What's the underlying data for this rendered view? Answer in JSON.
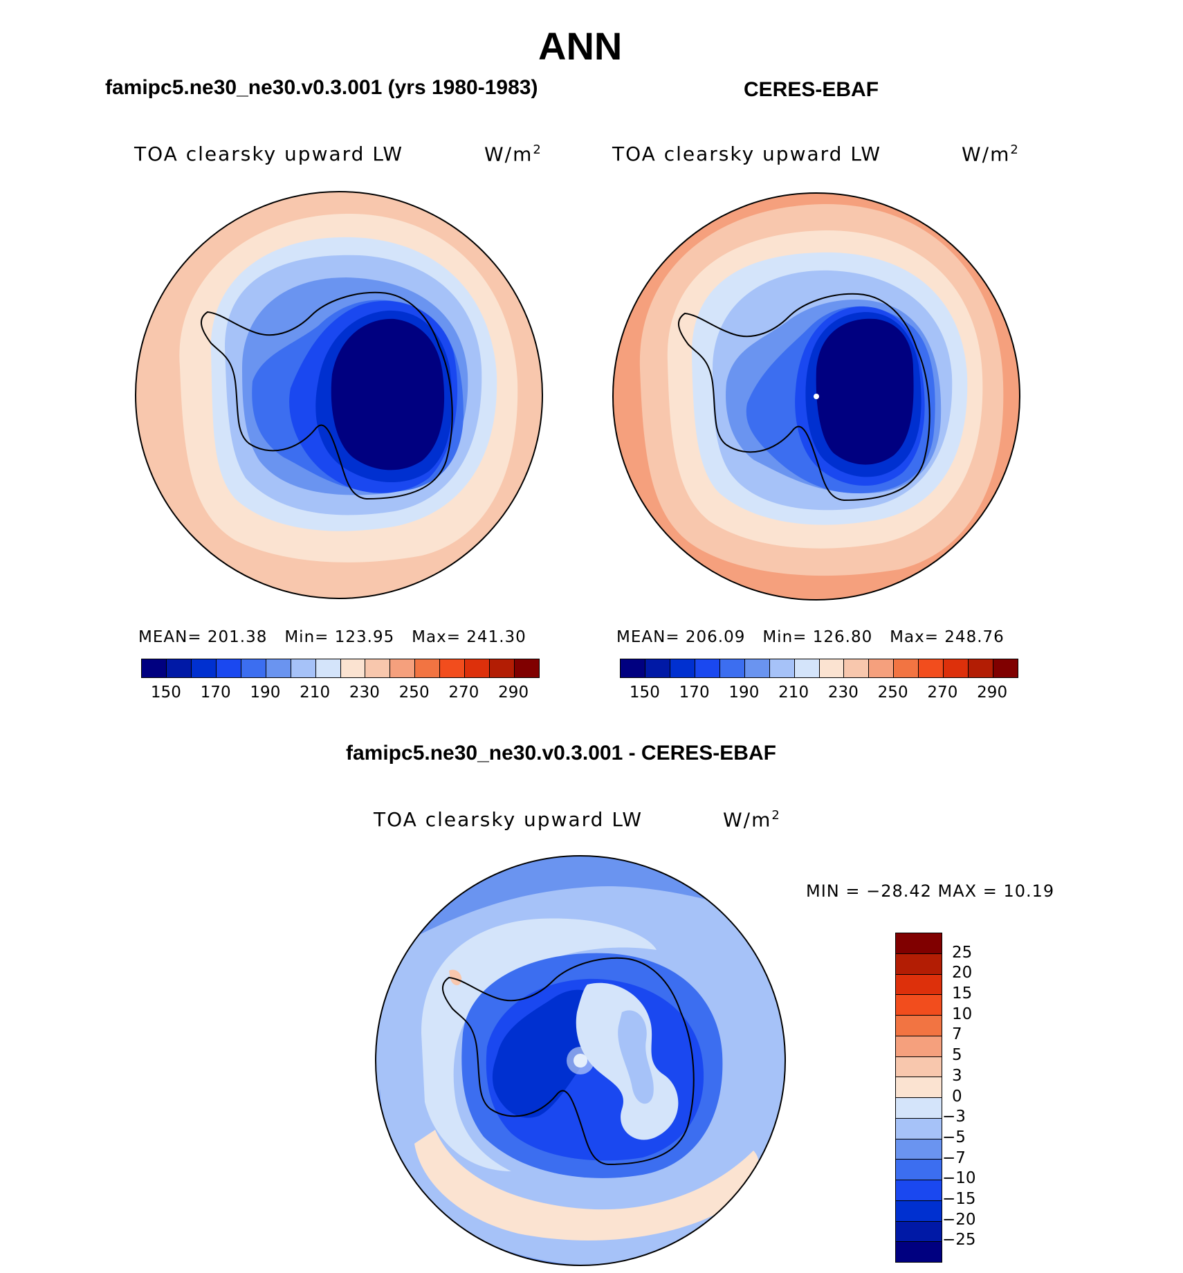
{
  "title": "ANN",
  "panels": {
    "left": {
      "header": "famipc5.ne30_ne30.v0.3.001 (yrs 1980-1983)",
      "variable": "TOA clearsky upward LW",
      "units_base": "W/m",
      "units_exp": "2",
      "mean_label": "MEAN=",
      "mean": "201.38",
      "min_label": "Min=",
      "min": "123.95",
      "max_label": "Max=",
      "max": "241.30"
    },
    "right": {
      "header": "CERES-EBAF",
      "variable": "TOA clearsky upward LW",
      "units_base": "W/m",
      "units_exp": "2",
      "mean_label": "MEAN=",
      "mean": "206.09",
      "min_label": "Min=",
      "min": "126.80",
      "max_label": "Max=",
      "max": "248.76"
    },
    "diff": {
      "header": "famipc5.ne30_ne30.v0.3.001 - CERES-EBAF",
      "variable": "TOA clearsky upward LW",
      "units_base": "W/m",
      "units_exp": "2",
      "minmax_text": "MIN = −28.42 MAX =  10.19"
    }
  },
  "chart_data": [
    {
      "type": "heatmap",
      "projection": "south-polar stereographic",
      "title": "famipc5.ne30_ne30.v0.3.001 (yrs 1980-1983)",
      "variable": "TOA clearsky upward LW",
      "units": "W/m2",
      "stats": {
        "mean": 201.38,
        "min": 123.95,
        "max": 241.3
      },
      "colorbar_levels": [
        150,
        160,
        170,
        180,
        190,
        200,
        210,
        220,
        230,
        240,
        250,
        260,
        270,
        280,
        290
      ],
      "colorbar_tick_labels": [
        "150",
        "170",
        "190",
        "210",
        "230",
        "250",
        "270",
        "290"
      ],
      "colors": [
        "#000080",
        "#0019a6",
        "#0030d0",
        "#1a48f0",
        "#3c6ef0",
        "#6a94f0",
        "#a6c2f8",
        "#d4e4fa",
        "#fbe3d1",
        "#f8c7ad",
        "#f5a07d",
        "#f27442",
        "#f24d1d",
        "#dd300b",
        "#b31d04",
        "#800000"
      ]
    },
    {
      "type": "heatmap",
      "projection": "south-polar stereographic",
      "title": "CERES-EBAF",
      "variable": "TOA clearsky upward LW",
      "units": "W/m2",
      "stats": {
        "mean": 206.09,
        "min": 126.8,
        "max": 248.76
      },
      "colorbar_levels": [
        150,
        160,
        170,
        180,
        190,
        200,
        210,
        220,
        230,
        240,
        250,
        260,
        270,
        280,
        290
      ],
      "colorbar_tick_labels": [
        "150",
        "170",
        "190",
        "210",
        "230",
        "250",
        "270",
        "290"
      ],
      "colors": [
        "#000080",
        "#0019a6",
        "#0030d0",
        "#1a48f0",
        "#3c6ef0",
        "#6a94f0",
        "#a6c2f8",
        "#d4e4fa",
        "#fbe3d1",
        "#f8c7ad",
        "#f5a07d",
        "#f27442",
        "#f24d1d",
        "#dd300b",
        "#b31d04",
        "#800000"
      ]
    },
    {
      "type": "heatmap",
      "projection": "south-polar stereographic",
      "title": "famipc5.ne30_ne30.v0.3.001 - CERES-EBAF",
      "variable": "TOA clearsky upward LW",
      "units": "W/m2",
      "stats": {
        "min": -28.42,
        "max": 10.19
      },
      "colorbar_levels": [
        25,
        20,
        15,
        10,
        7,
        5,
        3,
        0,
        -3,
        -5,
        -7,
        -10,
        -15,
        -20,
        -25
      ],
      "colorbar_tick_labels": [
        "25",
        "20",
        "15",
        "10",
        "7",
        "5",
        "3",
        "0",
        "−3",
        "−5",
        "−7",
        "−10",
        "−15",
        "−20",
        "−25"
      ],
      "colors": [
        "#800000",
        "#b31d04",
        "#dd300b",
        "#f24d1d",
        "#f27442",
        "#f5a07d",
        "#f8c7ad",
        "#fbe3d1",
        "#d4e4fa",
        "#a6c2f8",
        "#6a94f0",
        "#3c6ef0",
        "#1a48f0",
        "#0030d0",
        "#0019a6",
        "#000080"
      ]
    }
  ]
}
